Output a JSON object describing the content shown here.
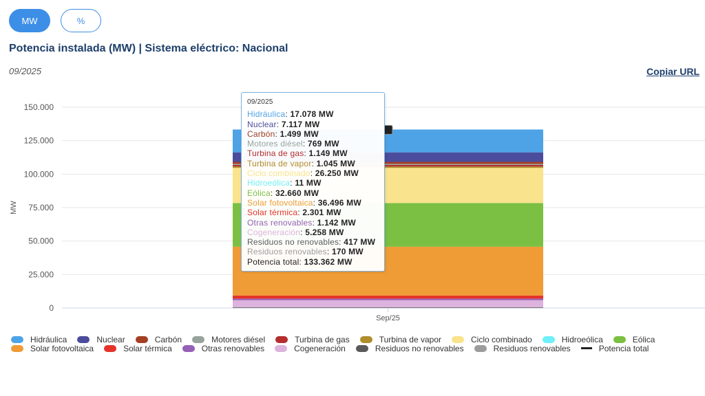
{
  "toggle": {
    "mw_label": "MW",
    "pct_label": "%"
  },
  "title": "Potencia instalada (MW) | Sistema eléctrico: Nacional",
  "date_label": "09/2025",
  "copy_url_label": "Copiar URL",
  "tooltip": {
    "date": "09/2025",
    "unit": " MW"
  },
  "chart_data": {
    "type": "bar",
    "stacked": true,
    "categories": [
      "Sep/25"
    ],
    "ylabel": "MW",
    "ylim": [
      0,
      150000
    ],
    "yticks": [
      "0",
      "25.000",
      "50.000",
      "75.000",
      "100.000",
      "125.000",
      "150.000"
    ],
    "grid": true,
    "legend_position": "bottom",
    "series": [
      {
        "name": "Hidráulica",
        "color": "#4da3e6",
        "values": [
          17078
        ],
        "display": "17.078"
      },
      {
        "name": "Nuclear",
        "color": "#4b4c9c",
        "values": [
          7117
        ],
        "display": "7.117"
      },
      {
        "name": "Carbón",
        "color": "#a33f22",
        "values": [
          1499
        ],
        "display": "1.499"
      },
      {
        "name": "Motores diésel",
        "color": "#97a39c",
        "values": [
          769
        ],
        "display": "769"
      },
      {
        "name": "Turbina de gas",
        "color": "#b52d2d",
        "values": [
          1149
        ],
        "display": "1.149"
      },
      {
        "name": "Turbina de vapor",
        "color": "#b08e2c",
        "values": [
          1045
        ],
        "display": "1.045"
      },
      {
        "name": "Ciclo combinado",
        "color": "#f9e38c",
        "values": [
          26250
        ],
        "display": "26.250"
      },
      {
        "name": "Hidroeólica",
        "color": "#6ff0fa",
        "values": [
          11
        ],
        "display": "11"
      },
      {
        "name": "Eólica",
        "color": "#7bc042",
        "values": [
          32660
        ],
        "display": "32.660"
      },
      {
        "name": "Solar fotovoltaica",
        "color": "#ef9b36",
        "values": [
          36496
        ],
        "display": "36.496"
      },
      {
        "name": "Solar térmica",
        "color": "#e6332a",
        "values": [
          2301
        ],
        "display": "2.301"
      },
      {
        "name": "Otras renovables",
        "color": "#9560b6",
        "values": [
          1142
        ],
        "display": "1.142"
      },
      {
        "name": "Cogeneración",
        "color": "#ddb3dd",
        "values": [
          5258
        ],
        "display": "5.258"
      },
      {
        "name": "Residuos no renovables",
        "color": "#5a5a5a",
        "values": [
          417
        ],
        "display": "417"
      },
      {
        "name": "Residuos renovables",
        "color": "#9c9c9c",
        "values": [
          170
        ],
        "display": "170"
      }
    ],
    "total": {
      "name": "Potencia total",
      "color": "#222222",
      "values": [
        133362
      ],
      "display": "133.362"
    }
  }
}
